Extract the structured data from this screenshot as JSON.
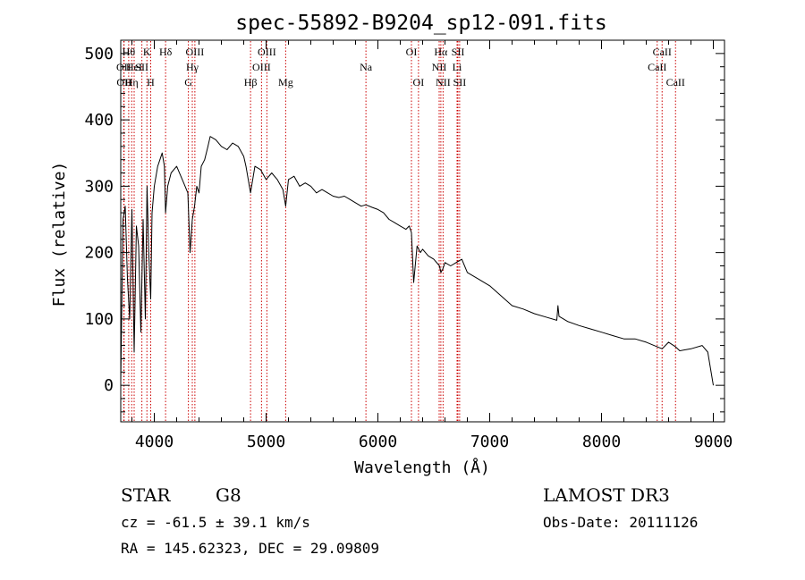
{
  "chart_data": {
    "type": "line",
    "title": "spec-55892-B9204_sp12-091.fits",
    "xlabel": "Wavelength (Å)",
    "ylabel": "Flux (relative)",
    "xlim": [
      3700,
      9100
    ],
    "ylim": [
      -55,
      520
    ],
    "xticks": [
      4000,
      5000,
      6000,
      7000,
      8000,
      9000
    ],
    "yticks": [
      0,
      100,
      200,
      300,
      400,
      500
    ],
    "x_minor_step": 200,
    "y_minor_step": 20,
    "grid": false,
    "series": [
      {
        "name": "spectrum",
        "color": "#000000",
        "x": [
          3700,
          3720,
          3740,
          3760,
          3780,
          3800,
          3820,
          3840,
          3860,
          3880,
          3900,
          3920,
          3935,
          3950,
          3968,
          3980,
          4000,
          4030,
          4050,
          4070,
          4090,
          4101,
          4120,
          4150,
          4200,
          4250,
          4300,
          4320,
          4340,
          4360,
          4380,
          4400,
          4420,
          4450,
          4480,
          4500,
          4550,
          4600,
          4650,
          4700,
          4750,
          4800,
          4820,
          4861,
          4900,
          4950,
          5000,
          5050,
          5100,
          5150,
          5175,
          5200,
          5250,
          5300,
          5350,
          5400,
          5450,
          5500,
          5550,
          5600,
          5650,
          5700,
          5750,
          5800,
          5850,
          5893,
          5950,
          6000,
          6050,
          6100,
          6150,
          6200,
          6250,
          6280,
          6300,
          6320,
          6350,
          6380,
          6400,
          6450,
          6500,
          6550,
          6563,
          6580,
          6600,
          6650,
          6700,
          6750,
          6800,
          6900,
          7000,
          7100,
          7200,
          7300,
          7400,
          7500,
          7600,
          7610,
          7620,
          7700,
          7800,
          7900,
          8000,
          8100,
          8200,
          8300,
          8400,
          8498,
          8542,
          8600,
          8662,
          8700,
          8800,
          8900,
          8950,
          9000
        ],
        "values": [
          5,
          250,
          270,
          160,
          100,
          265,
          50,
          240,
          210,
          80,
          250,
          100,
          300,
          200,
          130,
          260,
          300,
          330,
          340,
          350,
          330,
          260,
          300,
          320,
          330,
          310,
          290,
          200,
          250,
          270,
          300,
          290,
          330,
          340,
          360,
          375,
          370,
          360,
          355,
          365,
          360,
          345,
          330,
          290,
          330,
          325,
          310,
          320,
          310,
          295,
          270,
          310,
          315,
          300,
          305,
          300,
          290,
          295,
          290,
          285,
          283,
          285,
          280,
          275,
          270,
          272,
          268,
          265,
          260,
          250,
          245,
          240,
          235,
          240,
          230,
          155,
          210,
          200,
          205,
          195,
          190,
          180,
          170,
          175,
          185,
          180,
          185,
          190,
          170,
          160,
          150,
          135,
          120,
          115,
          108,
          103,
          98,
          120,
          104,
          96,
          90,
          85,
          80,
          75,
          70,
          70,
          65,
          58,
          55,
          65,
          58,
          52,
          55,
          60,
          50,
          0
        ]
      }
    ],
    "lines": [
      {
        "w": 3727,
        "label": "OII",
        "row": 2
      },
      {
        "w": 3730,
        "label": "OII",
        "row": 3
      },
      {
        "w": 3771,
        "label": "Hθ",
        "row": 1
      },
      {
        "w": 3798,
        "label": "Hη",
        "row": 3
      },
      {
        "w": 3820,
        "label": "HeI",
        "row": 2
      },
      {
        "w": 3889,
        "label": "SII",
        "row": 2
      },
      {
        "w": 3934,
        "label": "K",
        "row": 1
      },
      {
        "w": 3968,
        "label": "H",
        "row": 3
      },
      {
        "w": 4101,
        "label": "Hδ",
        "row": 1
      },
      {
        "w": 4305,
        "label": "G",
        "row": 3
      },
      {
        "w": 4340,
        "label": "Hγ",
        "row": 2
      },
      {
        "w": 4363,
        "label": "OIII",
        "row": 1
      },
      {
        "w": 4861,
        "label": "Hβ",
        "row": 3
      },
      {
        "w": 4959,
        "label": "OIII",
        "row": 2
      },
      {
        "w": 5007,
        "label": "OIII",
        "row": 1
      },
      {
        "w": 5175,
        "label": "Mg",
        "row": 3
      },
      {
        "w": 5893,
        "label": "Na",
        "row": 2
      },
      {
        "w": 6300,
        "label": "OI",
        "row": 1
      },
      {
        "w": 6363,
        "label": "OI",
        "row": 3
      },
      {
        "w": 6548,
        "label": "NII",
        "row": 2
      },
      {
        "w": 6563,
        "label": "Hα",
        "row": 1
      },
      {
        "w": 6583,
        "label": "NII",
        "row": 3
      },
      {
        "w": 6708,
        "label": "Li",
        "row": 2
      },
      {
        "w": 6716,
        "label": "SII",
        "row": 1
      },
      {
        "w": 6731,
        "label": "SII",
        "row": 3
      },
      {
        "w": 8498,
        "label": "CaII",
        "row": 2
      },
      {
        "w": 8542,
        "label": "CaII",
        "row": 1
      },
      {
        "w": 8662,
        "label": "CaII",
        "row": 3
      }
    ]
  },
  "info": {
    "object_class": "STAR",
    "subclass": "G8",
    "redshift": "cz = -61.5 ± 39.1 km/s",
    "coords": "RA = 145.62323, DEC =  29.09809",
    "survey": "LAMOST DR3",
    "obs_date": "Obs-Date: 20111126"
  }
}
